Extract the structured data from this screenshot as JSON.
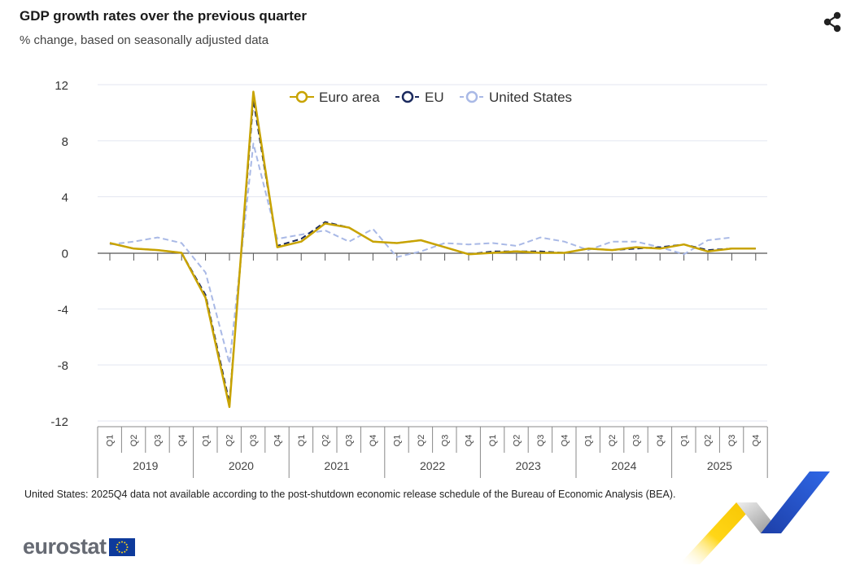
{
  "header": {
    "title": "GDP growth rates over the previous quarter",
    "subtitle": "% change, based on seasonally adjusted data",
    "share_icon": "share-icon"
  },
  "footer": {
    "note": "United States: 2025Q4 data not available according to the post-shutdown economic release schedule of the Bureau of Economic Analysis (BEA).",
    "logo_text": "eurostat",
    "logo_icon": "eu-flag-icon"
  },
  "colors": {
    "euro_area": "#c8a300",
    "eu": "#1b2a5e",
    "us": "#a9b9e6",
    "grid": "#e3e6f0"
  },
  "chart_data": {
    "type": "line",
    "title": "GDP growth rates over the previous quarter",
    "subtitle": "% change, based on seasonally adjusted data",
    "yticks": [
      12,
      8,
      4,
      0,
      -4,
      -8,
      -12
    ],
    "ylim": [
      -12,
      12
    ],
    "quarters": [
      "Q1",
      "Q2",
      "Q3",
      "Q4"
    ],
    "years": [
      "2019",
      "2020",
      "2021",
      "2022",
      "2023",
      "2024",
      "2025"
    ],
    "legend_position": "top",
    "grid": true,
    "series": [
      {
        "name": "Euro area",
        "style": "solid",
        "values": [
          0.7,
          0.3,
          0.2,
          0.0,
          -3.2,
          -11.0,
          11.5,
          0.4,
          0.8,
          2.1,
          1.8,
          0.8,
          0.7,
          0.9,
          0.4,
          -0.1,
          0.0,
          0.1,
          0.0,
          0.0,
          0.3,
          0.2,
          0.4,
          0.3,
          0.6,
          0.1,
          0.3,
          0.3
        ]
      },
      {
        "name": "EU",
        "style": "dashed",
        "values": [
          0.7,
          0.3,
          0.2,
          0.0,
          -3.0,
          -10.7,
          10.9,
          0.5,
          1.0,
          2.2,
          1.8,
          0.8,
          0.7,
          0.9,
          0.4,
          -0.1,
          0.1,
          0.1,
          0.1,
          0.0,
          0.3,
          0.2,
          0.3,
          0.4,
          0.6,
          0.2,
          0.3,
          0.3
        ]
      },
      {
        "name": "United States",
        "style": "dashed",
        "values": [
          0.6,
          0.8,
          1.1,
          0.7,
          -1.4,
          -7.9,
          7.8,
          1.0,
          1.3,
          1.6,
          0.8,
          1.7,
          -0.3,
          0.1,
          0.7,
          0.6,
          0.7,
          0.5,
          1.1,
          0.8,
          0.2,
          0.8,
          0.8,
          0.4,
          -0.1,
          0.9,
          1.1,
          null
        ]
      }
    ]
  }
}
